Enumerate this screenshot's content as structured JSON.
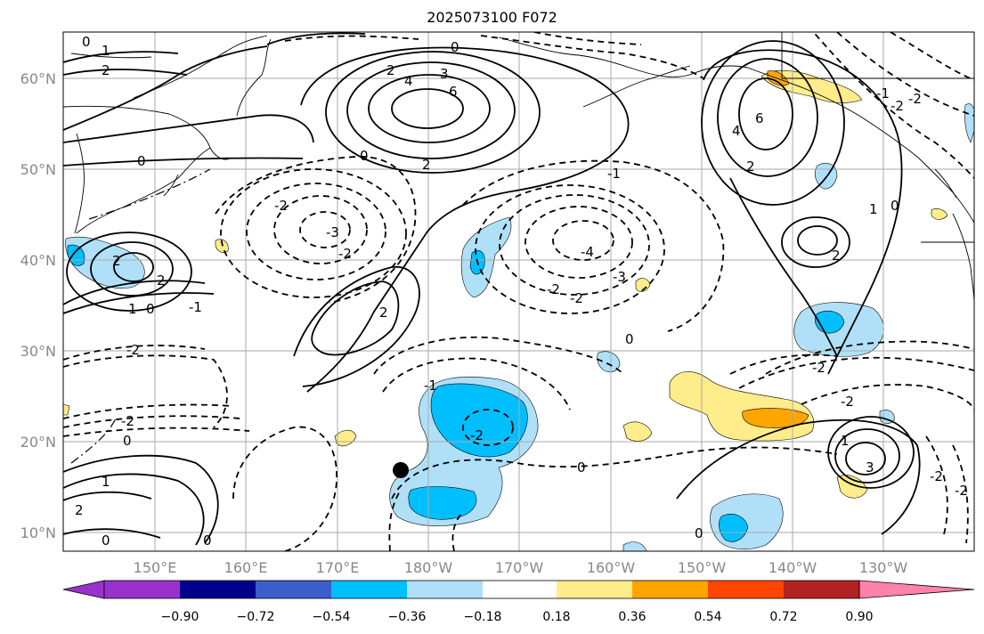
{
  "title": "2025073100 F072",
  "lat_labels": [
    "60°N",
    "50°N",
    "40°N",
    "30°N",
    "20°N",
    "10°N"
  ],
  "lon_labels": [
    "150°E",
    "160°E",
    "170°E",
    "180°W",
    "170°W",
    "160°W",
    "150°W",
    "140°W",
    "130°W"
  ],
  "colorbar": {
    "colors": [
      "#9932cc",
      "#00008b",
      "#3a5fcd",
      "#00bfff",
      "#b0e0f8",
      "#ffffff",
      "#ffec8b",
      "#ffa500",
      "#ff4500",
      "#b22222",
      "#ff82ab"
    ],
    "tick_labels": [
      "−0.90",
      "−0.72",
      "−0.54",
      "−0.36",
      "−0.18",
      "0.18",
      "0.36",
      "0.54",
      "0.72",
      "0.90"
    ]
  },
  "contour_labels": [
    "0",
    "1",
    "2",
    "3",
    "4",
    "6",
    "-1",
    "-2",
    "-3",
    "-4"
  ],
  "marker": "black-dot"
}
